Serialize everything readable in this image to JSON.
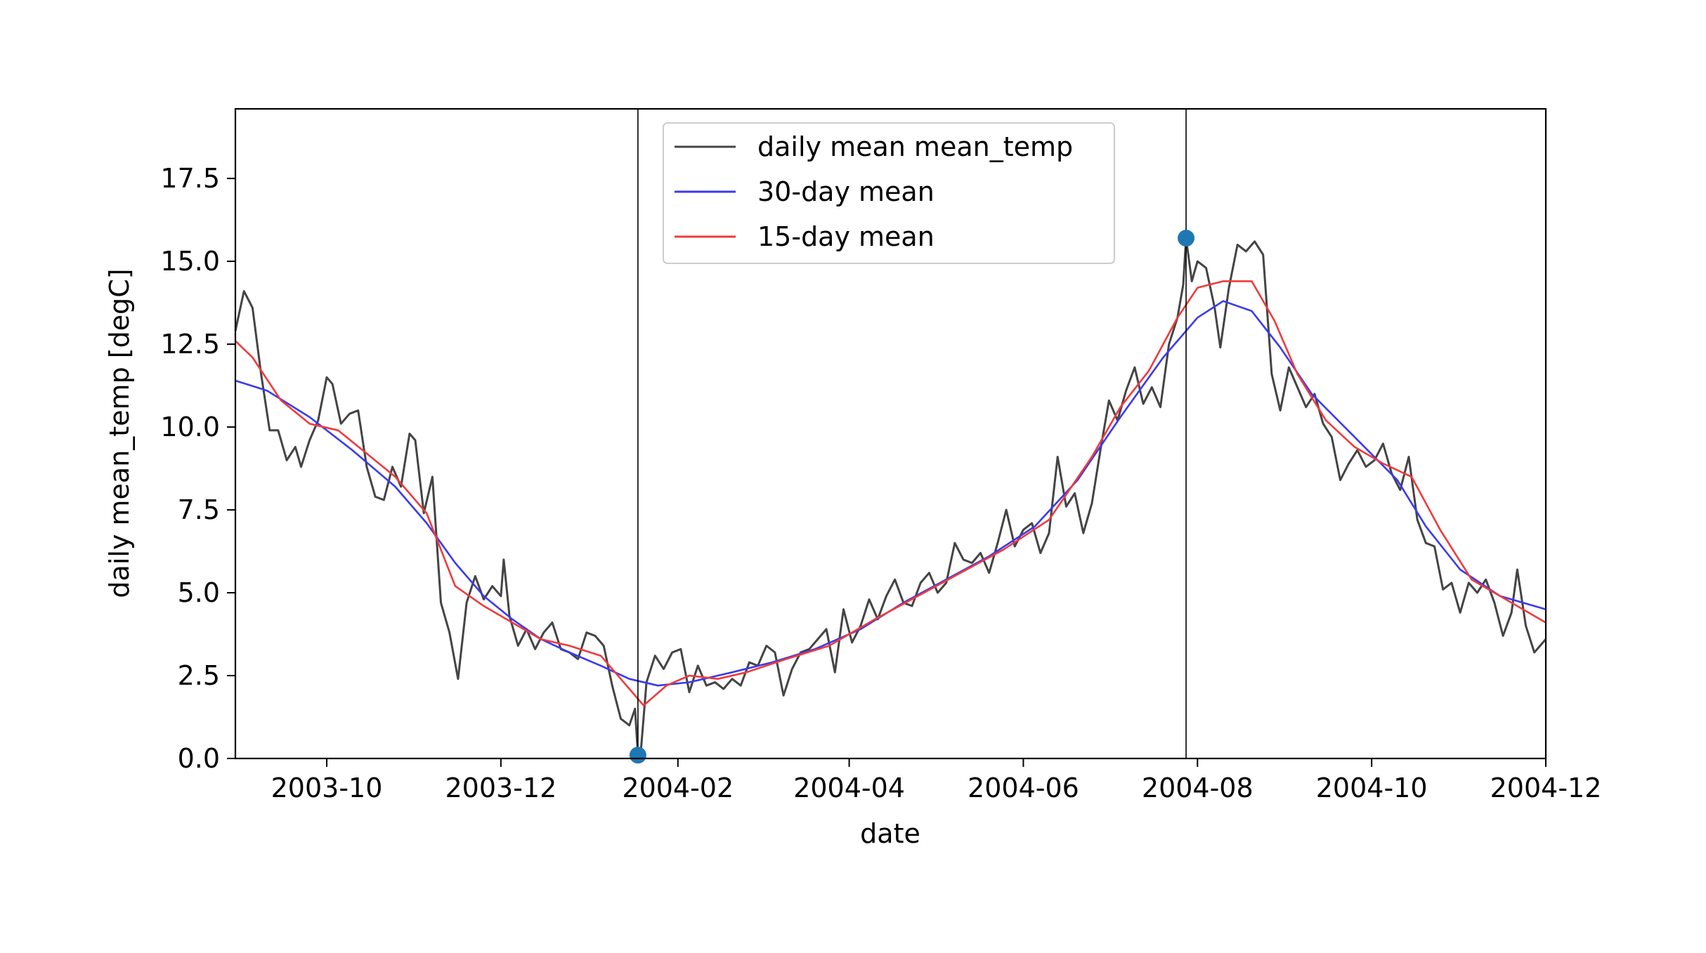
{
  "chart_data": {
    "type": "line",
    "xlabel": "date",
    "ylabel": "daily mean_temp [degC]",
    "xlim": [
      "2003-08-30",
      "2004-12-01"
    ],
    "ylim": [
      0,
      19.6
    ],
    "x_ticks": [
      "2003-10",
      "2003-12",
      "2004-02",
      "2004-04",
      "2004-06",
      "2004-08",
      "2004-10",
      "2004-12"
    ],
    "x_tick_dates": [
      "2003-10-01",
      "2003-12-01",
      "2004-02-01",
      "2004-04-01",
      "2004-06-01",
      "2004-08-01",
      "2004-10-01",
      "2004-12-01"
    ],
    "y_ticks": [
      "0.0",
      "2.5",
      "5.0",
      "7.5",
      "10.0",
      "12.5",
      "15.0",
      "17.5"
    ],
    "grid": false,
    "legend_position": "top-center",
    "colors": {
      "daily": "#444444",
      "mean30": "#3a3af0",
      "mean15": "#f03a3a",
      "marker": "#1f77b4"
    },
    "series": [
      {
        "name": "daily mean mean_temp",
        "points": [
          [
            "2003-08-30",
            12.9
          ],
          [
            "2003-09-02",
            14.1
          ],
          [
            "2003-09-05",
            13.6
          ],
          [
            "2003-09-08",
            11.6
          ],
          [
            "2003-09-11",
            9.9
          ],
          [
            "2003-09-14",
            9.9
          ],
          [
            "2003-09-17",
            9.0
          ],
          [
            "2003-09-20",
            9.4
          ],
          [
            "2003-09-22",
            8.8
          ],
          [
            "2003-09-25",
            9.6
          ],
          [
            "2003-09-28",
            10.2
          ],
          [
            "2003-10-01",
            11.5
          ],
          [
            "2003-10-03",
            11.3
          ],
          [
            "2003-10-06",
            10.1
          ],
          [
            "2003-10-09",
            10.4
          ],
          [
            "2003-10-12",
            10.5
          ],
          [
            "2003-10-15",
            8.8
          ],
          [
            "2003-10-18",
            7.9
          ],
          [
            "2003-10-21",
            7.8
          ],
          [
            "2003-10-24",
            8.8
          ],
          [
            "2003-10-27",
            8.2
          ],
          [
            "2003-10-30",
            9.8
          ],
          [
            "2003-11-01",
            9.6
          ],
          [
            "2003-11-04",
            7.4
          ],
          [
            "2003-11-07",
            8.5
          ],
          [
            "2003-11-10",
            4.7
          ],
          [
            "2003-11-13",
            3.8
          ],
          [
            "2003-11-16",
            2.4
          ],
          [
            "2003-11-19",
            4.7
          ],
          [
            "2003-11-22",
            5.5
          ],
          [
            "2003-11-25",
            4.8
          ],
          [
            "2003-11-28",
            5.2
          ],
          [
            "2003-12-01",
            4.9
          ],
          [
            "2003-12-02",
            6.0
          ],
          [
            "2003-12-04",
            4.3
          ],
          [
            "2003-12-07",
            3.4
          ],
          [
            "2003-12-10",
            3.9
          ],
          [
            "2003-12-13",
            3.3
          ],
          [
            "2003-12-16",
            3.8
          ],
          [
            "2003-12-19",
            4.1
          ],
          [
            "2003-12-22",
            3.3
          ],
          [
            "2003-12-25",
            3.2
          ],
          [
            "2003-12-28",
            3.0
          ],
          [
            "2003-12-31",
            3.8
          ],
          [
            "2004-01-03",
            3.7
          ],
          [
            "2004-01-06",
            3.4
          ],
          [
            "2004-01-09",
            2.2
          ],
          [
            "2004-01-12",
            1.2
          ],
          [
            "2004-01-15",
            1.0
          ],
          [
            "2004-01-17",
            1.5
          ],
          [
            "2004-01-18",
            0.1
          ],
          [
            "2004-01-19",
            0.2
          ],
          [
            "2004-01-21",
            2.3
          ],
          [
            "2004-01-24",
            3.1
          ],
          [
            "2004-01-27",
            2.7
          ],
          [
            "2004-01-30",
            3.2
          ],
          [
            "2004-02-02",
            3.3
          ],
          [
            "2004-02-05",
            2.0
          ],
          [
            "2004-02-08",
            2.8
          ],
          [
            "2004-02-11",
            2.2
          ],
          [
            "2004-02-14",
            2.3
          ],
          [
            "2004-02-17",
            2.1
          ],
          [
            "2004-02-20",
            2.4
          ],
          [
            "2004-02-23",
            2.2
          ],
          [
            "2004-02-26",
            2.9
          ],
          [
            "2004-02-29",
            2.8
          ],
          [
            "2004-03-03",
            3.4
          ],
          [
            "2004-03-06",
            3.2
          ],
          [
            "2004-03-09",
            1.9
          ],
          [
            "2004-03-12",
            2.7
          ],
          [
            "2004-03-15",
            3.2
          ],
          [
            "2004-03-18",
            3.3
          ],
          [
            "2004-03-21",
            3.6
          ],
          [
            "2004-03-24",
            3.9
          ],
          [
            "2004-03-27",
            2.6
          ],
          [
            "2004-03-30",
            4.5
          ],
          [
            "2004-04-02",
            3.5
          ],
          [
            "2004-04-05",
            4.0
          ],
          [
            "2004-04-08",
            4.8
          ],
          [
            "2004-04-11",
            4.2
          ],
          [
            "2004-04-14",
            4.9
          ],
          [
            "2004-04-17",
            5.4
          ],
          [
            "2004-04-20",
            4.7
          ],
          [
            "2004-04-23",
            4.6
          ],
          [
            "2004-04-26",
            5.3
          ],
          [
            "2004-04-29",
            5.6
          ],
          [
            "2004-05-02",
            5.0
          ],
          [
            "2004-05-05",
            5.3
          ],
          [
            "2004-05-08",
            6.5
          ],
          [
            "2004-05-11",
            6.0
          ],
          [
            "2004-05-14",
            5.9
          ],
          [
            "2004-05-17",
            6.2
          ],
          [
            "2004-05-20",
            5.6
          ],
          [
            "2004-05-23",
            6.5
          ],
          [
            "2004-05-26",
            7.5
          ],
          [
            "2004-05-29",
            6.4
          ],
          [
            "2004-06-01",
            6.9
          ],
          [
            "2004-06-04",
            7.1
          ],
          [
            "2004-06-07",
            6.2
          ],
          [
            "2004-06-10",
            6.8
          ],
          [
            "2004-06-13",
            9.1
          ],
          [
            "2004-06-16",
            7.6
          ],
          [
            "2004-06-19",
            8.0
          ],
          [
            "2004-06-22",
            6.8
          ],
          [
            "2004-06-25",
            7.7
          ],
          [
            "2004-06-28",
            9.3
          ],
          [
            "2004-07-01",
            10.8
          ],
          [
            "2004-07-04",
            10.2
          ],
          [
            "2004-07-07",
            11.1
          ],
          [
            "2004-07-10",
            11.8
          ],
          [
            "2004-07-13",
            10.7
          ],
          [
            "2004-07-16",
            11.2
          ],
          [
            "2004-07-19",
            10.6
          ],
          [
            "2004-07-22",
            12.5
          ],
          [
            "2004-07-25",
            13.3
          ],
          [
            "2004-07-27",
            14.3
          ],
          [
            "2004-07-28",
            15.7
          ],
          [
            "2004-07-30",
            14.4
          ],
          [
            "2004-08-01",
            15.0
          ],
          [
            "2004-08-04",
            14.8
          ],
          [
            "2004-08-07",
            13.6
          ],
          [
            "2004-08-09",
            12.4
          ],
          [
            "2004-08-12",
            14.2
          ],
          [
            "2004-08-15",
            15.5
          ],
          [
            "2004-08-18",
            15.3
          ],
          [
            "2004-08-21",
            15.6
          ],
          [
            "2004-08-24",
            15.2
          ],
          [
            "2004-08-27",
            11.6
          ],
          [
            "2004-08-30",
            10.5
          ],
          [
            "2004-09-02",
            11.8
          ],
          [
            "2004-09-05",
            11.2
          ],
          [
            "2004-09-08",
            10.6
          ],
          [
            "2004-09-11",
            11.0
          ],
          [
            "2004-09-14",
            10.1
          ],
          [
            "2004-09-17",
            9.7
          ],
          [
            "2004-09-20",
            8.4
          ],
          [
            "2004-09-23",
            8.9
          ],
          [
            "2004-09-26",
            9.3
          ],
          [
            "2004-09-29",
            8.8
          ],
          [
            "2004-10-02",
            9.0
          ],
          [
            "2004-10-05",
            9.5
          ],
          [
            "2004-10-08",
            8.6
          ],
          [
            "2004-10-11",
            8.1
          ],
          [
            "2004-10-14",
            9.1
          ],
          [
            "2004-10-17",
            7.2
          ],
          [
            "2004-10-20",
            6.5
          ],
          [
            "2004-10-23",
            6.4
          ],
          [
            "2004-10-26",
            5.1
          ],
          [
            "2004-10-29",
            5.3
          ],
          [
            "2004-11-01",
            4.4
          ],
          [
            "2004-11-04",
            5.3
          ],
          [
            "2004-11-07",
            5.0
          ],
          [
            "2004-11-10",
            5.4
          ],
          [
            "2004-11-13",
            4.7
          ],
          [
            "2004-11-16",
            3.7
          ],
          [
            "2004-11-19",
            4.4
          ],
          [
            "2004-11-21",
            5.7
          ],
          [
            "2004-11-24",
            4.0
          ],
          [
            "2004-11-27",
            3.2
          ],
          [
            "2004-12-01",
            3.6
          ]
        ]
      },
      {
        "name": "30-day mean",
        "points": [
          [
            "2003-08-30",
            11.4
          ],
          [
            "2003-09-10",
            11.1
          ],
          [
            "2003-09-25",
            10.3
          ],
          [
            "2003-10-10",
            9.3
          ],
          [
            "2003-10-25",
            8.2
          ],
          [
            "2003-11-05",
            7.1
          ],
          [
            "2003-11-15",
            5.9
          ],
          [
            "2003-11-25",
            4.9
          ],
          [
            "2003-12-05",
            4.2
          ],
          [
            "2003-12-15",
            3.6
          ],
          [
            "2003-12-25",
            3.2
          ],
          [
            "2004-01-05",
            2.8
          ],
          [
            "2004-01-15",
            2.4
          ],
          [
            "2004-01-25",
            2.2
          ],
          [
            "2004-02-05",
            2.3
          ],
          [
            "2004-02-20",
            2.6
          ],
          [
            "2004-03-05",
            2.9
          ],
          [
            "2004-03-20",
            3.3
          ],
          [
            "2004-04-05",
            3.9
          ],
          [
            "2004-04-20",
            4.7
          ],
          [
            "2004-05-05",
            5.4
          ],
          [
            "2004-05-20",
            6.1
          ],
          [
            "2004-06-05",
            7.0
          ],
          [
            "2004-06-20",
            8.4
          ],
          [
            "2004-07-05",
            10.3
          ],
          [
            "2004-07-20",
            12.1
          ],
          [
            "2004-08-01",
            13.3
          ],
          [
            "2004-08-10",
            13.8
          ],
          [
            "2004-08-20",
            13.5
          ],
          [
            "2004-08-30",
            12.4
          ],
          [
            "2004-09-10",
            11.0
          ],
          [
            "2004-09-25",
            9.7
          ],
          [
            "2004-10-10",
            8.4
          ],
          [
            "2004-10-20",
            7.0
          ],
          [
            "2004-11-01",
            5.7
          ],
          [
            "2004-11-15",
            4.9
          ],
          [
            "2004-12-01",
            4.5
          ]
        ]
      },
      {
        "name": "15-day mean",
        "points": [
          [
            "2003-08-30",
            12.6
          ],
          [
            "2003-09-05",
            12.1
          ],
          [
            "2003-09-15",
            10.8
          ],
          [
            "2003-09-25",
            10.1
          ],
          [
            "2003-10-05",
            9.9
          ],
          [
            "2003-10-15",
            9.2
          ],
          [
            "2003-10-25",
            8.5
          ],
          [
            "2003-11-05",
            7.4
          ],
          [
            "2003-11-15",
            5.2
          ],
          [
            "2003-11-25",
            4.6
          ],
          [
            "2003-12-05",
            4.1
          ],
          [
            "2003-12-15",
            3.6
          ],
          [
            "2003-12-25",
            3.4
          ],
          [
            "2004-01-05",
            3.1
          ],
          [
            "2004-01-12",
            2.4
          ],
          [
            "2004-01-20",
            1.6
          ],
          [
            "2004-01-28",
            2.2
          ],
          [
            "2004-02-05",
            2.5
          ],
          [
            "2004-02-15",
            2.4
          ],
          [
            "2004-02-25",
            2.6
          ],
          [
            "2004-03-10",
            3.0
          ],
          [
            "2004-03-25",
            3.4
          ],
          [
            "2004-04-10",
            4.2
          ],
          [
            "2004-04-25",
            4.9
          ],
          [
            "2004-05-10",
            5.6
          ],
          [
            "2004-05-25",
            6.3
          ],
          [
            "2004-06-10",
            7.2
          ],
          [
            "2004-06-25",
            9.1
          ],
          [
            "2004-07-05",
            10.6
          ],
          [
            "2004-07-15",
            11.7
          ],
          [
            "2004-07-25",
            13.3
          ],
          [
            "2004-08-01",
            14.2
          ],
          [
            "2004-08-10",
            14.4
          ],
          [
            "2004-08-20",
            14.4
          ],
          [
            "2004-08-28",
            13.2
          ],
          [
            "2004-09-05",
            11.6
          ],
          [
            "2004-09-15",
            10.2
          ],
          [
            "2004-09-25",
            9.4
          ],
          [
            "2004-10-05",
            8.9
          ],
          [
            "2004-10-15",
            8.5
          ],
          [
            "2004-10-25",
            6.9
          ],
          [
            "2004-11-05",
            5.4
          ],
          [
            "2004-11-15",
            4.9
          ],
          [
            "2004-12-01",
            4.1
          ]
        ]
      }
    ],
    "vertical_lines": [
      "2004-01-18",
      "2004-07-28"
    ],
    "markers": [
      [
        "2004-01-18",
        0.1
      ],
      [
        "2004-07-28",
        15.7
      ]
    ]
  }
}
